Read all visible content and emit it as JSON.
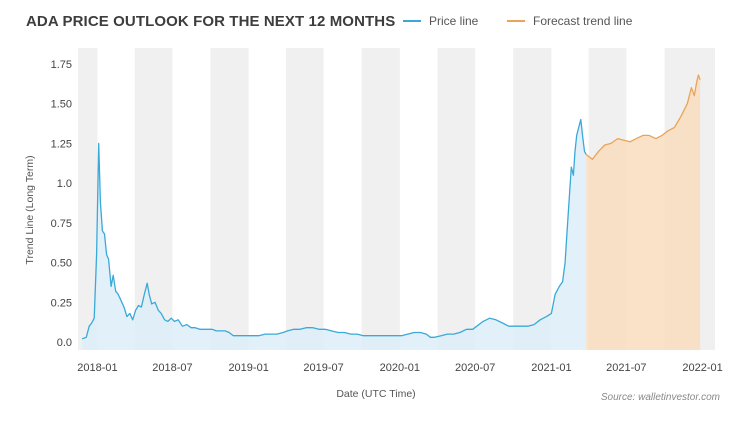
{
  "title": "ADA PRICE OUTLOOK FOR THE NEXT 12 MONTHS",
  "legend": {
    "price_label": "Price line",
    "forecast_label": "Forecast trend line"
  },
  "source": "Source: walletinvestor.com",
  "colors": {
    "price": "#3aa9d8",
    "price_fill": "#ddeff8",
    "forecast": "#e9a456",
    "forecast_fill": "#f9ddc0",
    "band": "#f0f0f0",
    "title": "#3d3d3d"
  },
  "chart_data": {
    "type": "area",
    "title": "ADA PRICE OUTLOOK FOR THE NEXT 12 MONTHS",
    "xlabel": "Date (UTC Time)",
    "ylabel": "Trend Line (Long Term)",
    "ylim": [
      -0.05,
      1.85
    ],
    "xlim": [
      "2017-11-15",
      "2022-01-31"
    ],
    "y_ticks": [
      0.0,
      0.25,
      0.5,
      0.75,
      1.0,
      1.25,
      1.5,
      1.75
    ],
    "y_tick_labels": [
      "0.0",
      "0.25",
      "0.50",
      "0.75",
      "1.0",
      "1.25",
      "1.50",
      "1.75"
    ],
    "x_ticks": [
      "2018-01-01",
      "2018-07-01",
      "2019-01-01",
      "2019-07-01",
      "2020-01-01",
      "2020-07-01",
      "2021-01-01",
      "2021-07-01",
      "2022-01-01"
    ],
    "x_tick_labels": [
      "2018-01",
      "2018-07",
      "2019-01",
      "2019-07",
      "2020-01",
      "2020-07",
      "2021-01",
      "2021-07",
      "2022-01"
    ],
    "grid": false,
    "legend_position": "top",
    "series": [
      {
        "name": "Price line",
        "x": [
          "2017-11-25",
          "2017-12-05",
          "2017-12-12",
          "2017-12-18",
          "2017-12-24",
          "2017-12-30",
          "2018-01-04",
          "2018-01-08",
          "2018-01-13",
          "2018-01-18",
          "2018-01-23",
          "2018-01-28",
          "2018-02-03",
          "2018-02-08",
          "2018-02-14",
          "2018-02-20",
          "2018-02-27",
          "2018-03-06",
          "2018-03-13",
          "2018-03-20",
          "2018-03-27",
          "2018-04-03",
          "2018-04-10",
          "2018-04-17",
          "2018-04-24",
          "2018-05-01",
          "2018-05-06",
          "2018-05-12",
          "2018-05-20",
          "2018-05-28",
          "2018-06-04",
          "2018-06-12",
          "2018-06-20",
          "2018-06-28",
          "2018-07-06",
          "2018-07-15",
          "2018-07-25",
          "2018-08-05",
          "2018-08-15",
          "2018-08-25",
          "2018-09-05",
          "2018-09-15",
          "2018-09-25",
          "2018-10-05",
          "2018-10-15",
          "2018-10-25",
          "2018-11-05",
          "2018-11-15",
          "2018-11-25",
          "2018-12-10",
          "2018-12-25",
          "2019-01-10",
          "2019-01-25",
          "2019-02-10",
          "2019-02-25",
          "2019-03-10",
          "2019-03-25",
          "2019-04-05",
          "2019-04-20",
          "2019-05-05",
          "2019-05-20",
          "2019-06-05",
          "2019-06-20",
          "2019-07-05",
          "2019-07-20",
          "2019-08-05",
          "2019-08-20",
          "2019-09-05",
          "2019-09-20",
          "2019-10-05",
          "2019-10-20",
          "2019-11-05",
          "2019-11-20",
          "2019-12-05",
          "2019-12-20",
          "2020-01-05",
          "2020-01-20",
          "2020-02-05",
          "2020-02-20",
          "2020-03-05",
          "2020-03-15",
          "2020-03-25",
          "2020-04-10",
          "2020-04-25",
          "2020-05-10",
          "2020-05-25",
          "2020-06-10",
          "2020-06-25",
          "2020-07-05",
          "2020-07-20",
          "2020-08-05",
          "2020-08-20",
          "2020-09-05",
          "2020-09-20",
          "2020-10-05",
          "2020-10-20",
          "2020-11-05",
          "2020-11-20",
          "2020-12-05",
          "2020-12-20",
          "2021-01-01",
          "2021-01-10",
          "2021-01-20",
          "2021-01-28",
          "2021-02-03",
          "2021-02-08",
          "2021-02-13",
          "2021-02-18",
          "2021-02-23",
          "2021-02-27",
          "2021-03-03",
          "2021-03-08",
          "2021-03-13",
          "2021-03-18",
          "2021-03-22",
          "2021-03-26"
        ],
        "values": [
          0.02,
          0.03,
          0.1,
          0.12,
          0.15,
          0.55,
          1.25,
          0.88,
          0.7,
          0.68,
          0.55,
          0.52,
          0.35,
          0.42,
          0.32,
          0.3,
          0.26,
          0.22,
          0.16,
          0.18,
          0.14,
          0.2,
          0.23,
          0.22,
          0.3,
          0.37,
          0.3,
          0.24,
          0.25,
          0.2,
          0.18,
          0.14,
          0.13,
          0.15,
          0.13,
          0.14,
          0.1,
          0.11,
          0.09,
          0.09,
          0.08,
          0.08,
          0.08,
          0.08,
          0.07,
          0.07,
          0.07,
          0.06,
          0.04,
          0.04,
          0.04,
          0.04,
          0.04,
          0.05,
          0.05,
          0.05,
          0.06,
          0.07,
          0.08,
          0.08,
          0.09,
          0.09,
          0.08,
          0.08,
          0.07,
          0.06,
          0.06,
          0.05,
          0.05,
          0.04,
          0.04,
          0.04,
          0.04,
          0.04,
          0.04,
          0.04,
          0.05,
          0.06,
          0.06,
          0.05,
          0.03,
          0.03,
          0.04,
          0.05,
          0.05,
          0.06,
          0.08,
          0.08,
          0.1,
          0.13,
          0.15,
          0.14,
          0.12,
          0.1,
          0.1,
          0.1,
          0.1,
          0.11,
          0.14,
          0.16,
          0.18,
          0.3,
          0.35,
          0.38,
          0.5,
          0.7,
          0.9,
          1.1,
          1.05,
          1.2,
          1.3,
          1.35,
          1.4,
          1.28,
          1.2,
          1.18
        ]
      },
      {
        "name": "Forecast trend line",
        "x": [
          "2021-03-26",
          "2021-04-10",
          "2021-04-25",
          "2021-05-10",
          "2021-05-25",
          "2021-06-10",
          "2021-06-25",
          "2021-07-10",
          "2021-07-25",
          "2021-08-10",
          "2021-08-25",
          "2021-09-10",
          "2021-09-25",
          "2021-10-10",
          "2021-10-25",
          "2021-11-10",
          "2021-11-25",
          "2021-12-05",
          "2021-12-12",
          "2021-12-18",
          "2021-12-22",
          "2021-12-26"
        ],
        "values": [
          1.18,
          1.15,
          1.2,
          1.24,
          1.25,
          1.28,
          1.27,
          1.26,
          1.28,
          1.3,
          1.3,
          1.28,
          1.3,
          1.33,
          1.35,
          1.42,
          1.5,
          1.6,
          1.55,
          1.64,
          1.68,
          1.65
        ]
      }
    ]
  }
}
